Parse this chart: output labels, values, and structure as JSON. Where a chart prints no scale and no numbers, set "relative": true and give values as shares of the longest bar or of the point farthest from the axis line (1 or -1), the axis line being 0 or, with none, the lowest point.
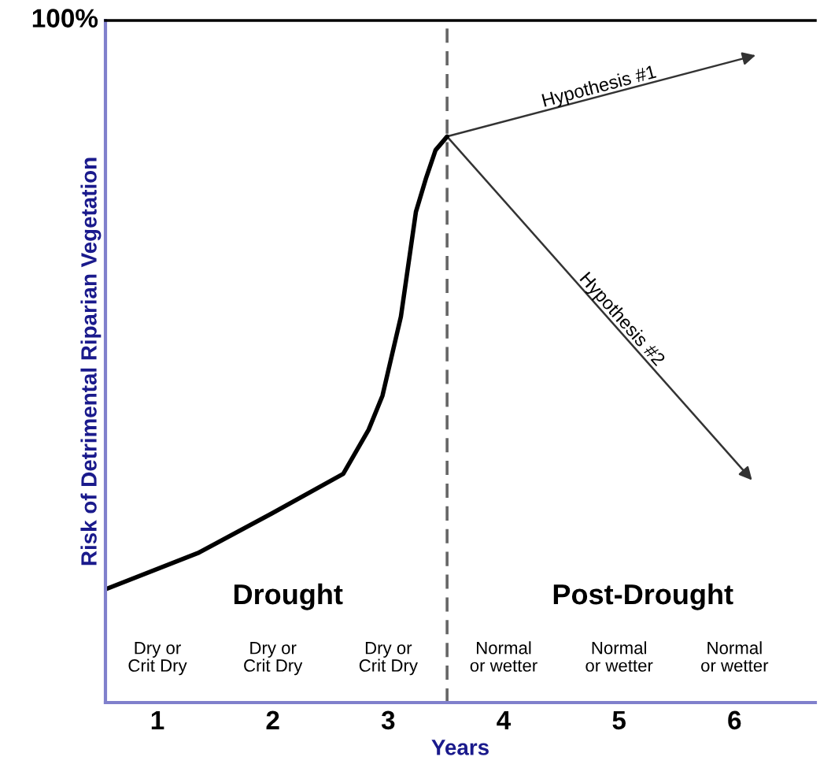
{
  "chart_data": {
    "type": "line",
    "xlabel": "Years",
    "ylabel": "Risk of Detrimental Riparian Vegetation",
    "xlim": [
      0.55,
      6.7
    ],
    "xticks": [
      1,
      2,
      3,
      4,
      5,
      6
    ],
    "relative": true,
    "grid": false,
    "legend": false,
    "marker": "none",
    "series": [
      {
        "color": "#000000",
        "line_style": "solid",
        "x": [
          0.55,
          1.36,
          1.99,
          2.61,
          2.83,
          2.95,
          3.11,
          3.24,
          3.33,
          3.41,
          3.51
        ],
        "values": [
          0.2,
          0.265,
          0.334,
          0.404,
          0.482,
          0.542,
          0.682,
          0.867,
          0.928,
          0.976,
          1
        ]
      }
    ],
    "ref_lines": [
      {
        "axis": "x",
        "value": 3.51,
        "color": "#666666",
        "line_style": "dashed"
      }
    ],
    "annotations": [
      "100%",
      "Drought",
      "Post-Drought",
      "Dry or\nCrit Dry",
      "Dry or\nCrit Dry",
      "Dry or\nCrit Dry",
      "Normal\nor wetter",
      "Normal\nor wetter",
      "Normal\nor wetter",
      "Hypothesis #1",
      "Hypothesis #2"
    ]
  }
}
